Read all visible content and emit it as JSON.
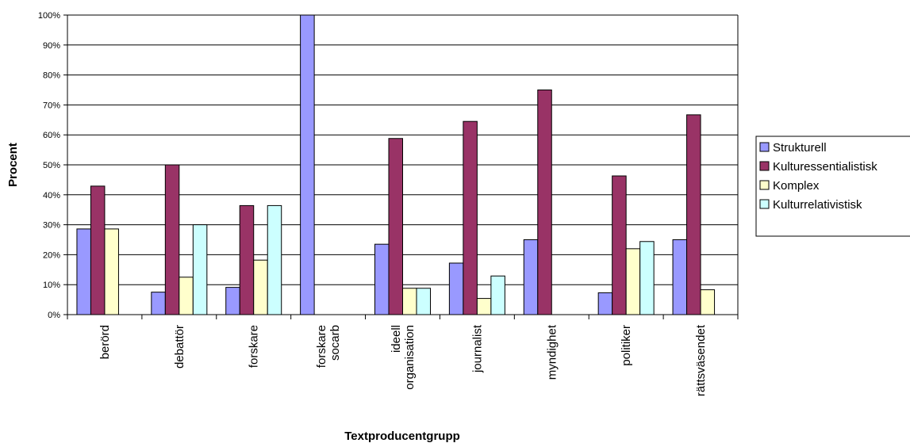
{
  "chart_data": {
    "type": "bar",
    "title": "",
    "xlabel": "Textproducentgrupp",
    "ylabel": "Procent",
    "ylim": [
      0,
      100
    ],
    "yticks": [
      "0%",
      "10%",
      "20%",
      "30%",
      "40%",
      "50%",
      "60%",
      "70%",
      "80%",
      "90%",
      "100%"
    ],
    "grid": true,
    "legend_position": "right",
    "categories": [
      [
        "berörd"
      ],
      [
        "debattör"
      ],
      [
        "forskare"
      ],
      [
        "forskare",
        "socarb"
      ],
      [
        "ideell",
        "organisation"
      ],
      [
        "journalist"
      ],
      [
        "myndighet"
      ],
      [
        "politiker"
      ],
      [
        "rättsväsendet"
      ]
    ],
    "series": [
      {
        "name": "Strukturell",
        "color": "#9999ff",
        "values": [
          28.6,
          7.5,
          9.1,
          100,
          23.5,
          17.2,
          25.0,
          7.3,
          25.0
        ]
      },
      {
        "name": "Kulturessentialistisk",
        "color": "#993366",
        "values": [
          42.9,
          50.0,
          36.4,
          0,
          58.8,
          64.5,
          75.0,
          46.3,
          66.7
        ]
      },
      {
        "name": "Komplex",
        "color": "#ffffcc",
        "values": [
          28.6,
          12.5,
          18.2,
          0,
          8.8,
          5.4,
          0,
          22.0,
          8.3
        ]
      },
      {
        "name": "Kulturrelativistisk",
        "color": "#ccffff",
        "values": [
          0,
          30.0,
          36.4,
          0,
          8.8,
          12.9,
          0,
          24.4,
          0
        ]
      }
    ]
  }
}
